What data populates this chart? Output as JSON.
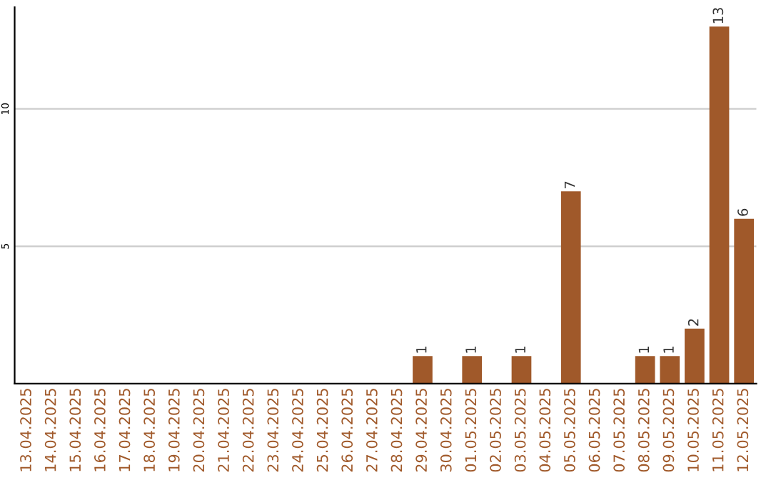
{
  "chart_data": {
    "type": "bar",
    "categories": [
      "13.04.2025",
      "14.04.2025",
      "15.04.2025",
      "16.04.2025",
      "17.04.2025",
      "18.04.2025",
      "19.04.2025",
      "20.04.2025",
      "21.04.2025",
      "22.04.2025",
      "23.04.2025",
      "24.04.2025",
      "25.04.2025",
      "26.04.2025",
      "27.04.2025",
      "28.04.2025",
      "29.04.2025",
      "30.04.2025",
      "01.05.2025",
      "02.05.2025",
      "03.05.2025",
      "04.05.2025",
      "05.05.2025",
      "06.05.2025",
      "07.05.2025",
      "08.05.2025",
      "09.05.2025",
      "10.05.2025",
      "11.05.2025",
      "12.05.2025"
    ],
    "values": [
      0,
      0,
      0,
      0,
      0,
      0,
      0,
      0,
      0,
      0,
      0,
      0,
      0,
      0,
      0,
      0,
      1,
      0,
      1,
      0,
      1,
      0,
      7,
      0,
      0,
      1,
      1,
      2,
      13,
      6
    ],
    "value_labels": [
      null,
      null,
      null,
      null,
      null,
      null,
      null,
      null,
      null,
      null,
      null,
      null,
      null,
      null,
      null,
      null,
      "1",
      null,
      "1",
      null,
      "1",
      null,
      "7",
      null,
      null,
      "1",
      "1",
      "2",
      "13",
      "6"
    ],
    "color": "#a0592a",
    "ylim": [
      0,
      13.7
    ],
    "yticks": [
      5,
      10
    ],
    "grid": "y"
  }
}
